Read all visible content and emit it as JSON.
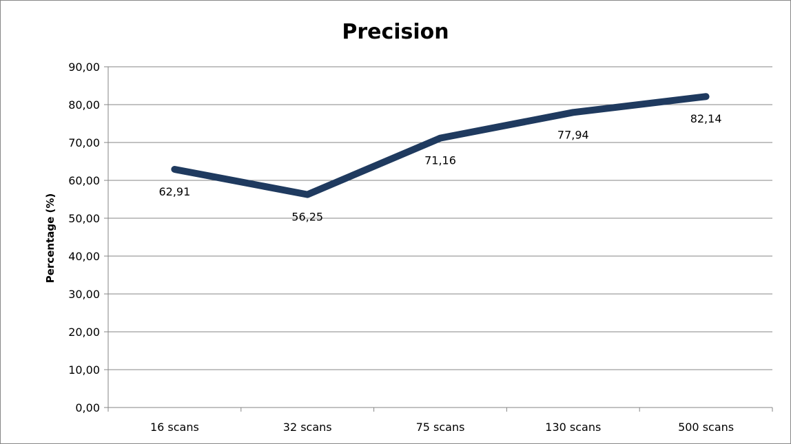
{
  "chart_data": {
    "type": "line",
    "title": "Precision",
    "xlabel": "",
    "ylabel": "Percentage (%)",
    "categories": [
      "16 scans",
      "32 scans",
      "75 scans",
      "130 scans",
      "500 scans"
    ],
    "series": [
      {
        "values": [
          62.91,
          56.25,
          71.16,
          77.94,
          82.14
        ],
        "labels": [
          "62,91",
          "56,25",
          "71,16",
          "77,94",
          "82,14"
        ],
        "color": "#1f3a5f"
      }
    ],
    "ylim": [
      0,
      90
    ],
    "y_ticks": [
      0,
      10,
      20,
      30,
      40,
      50,
      60,
      70,
      80,
      90
    ],
    "y_tick_labels": [
      "0,00",
      "10,00",
      "20,00",
      "30,00",
      "40,00",
      "50,00",
      "60,00",
      "70,00",
      "80,00",
      "90,00"
    ],
    "grid": true,
    "legend": "none"
  }
}
